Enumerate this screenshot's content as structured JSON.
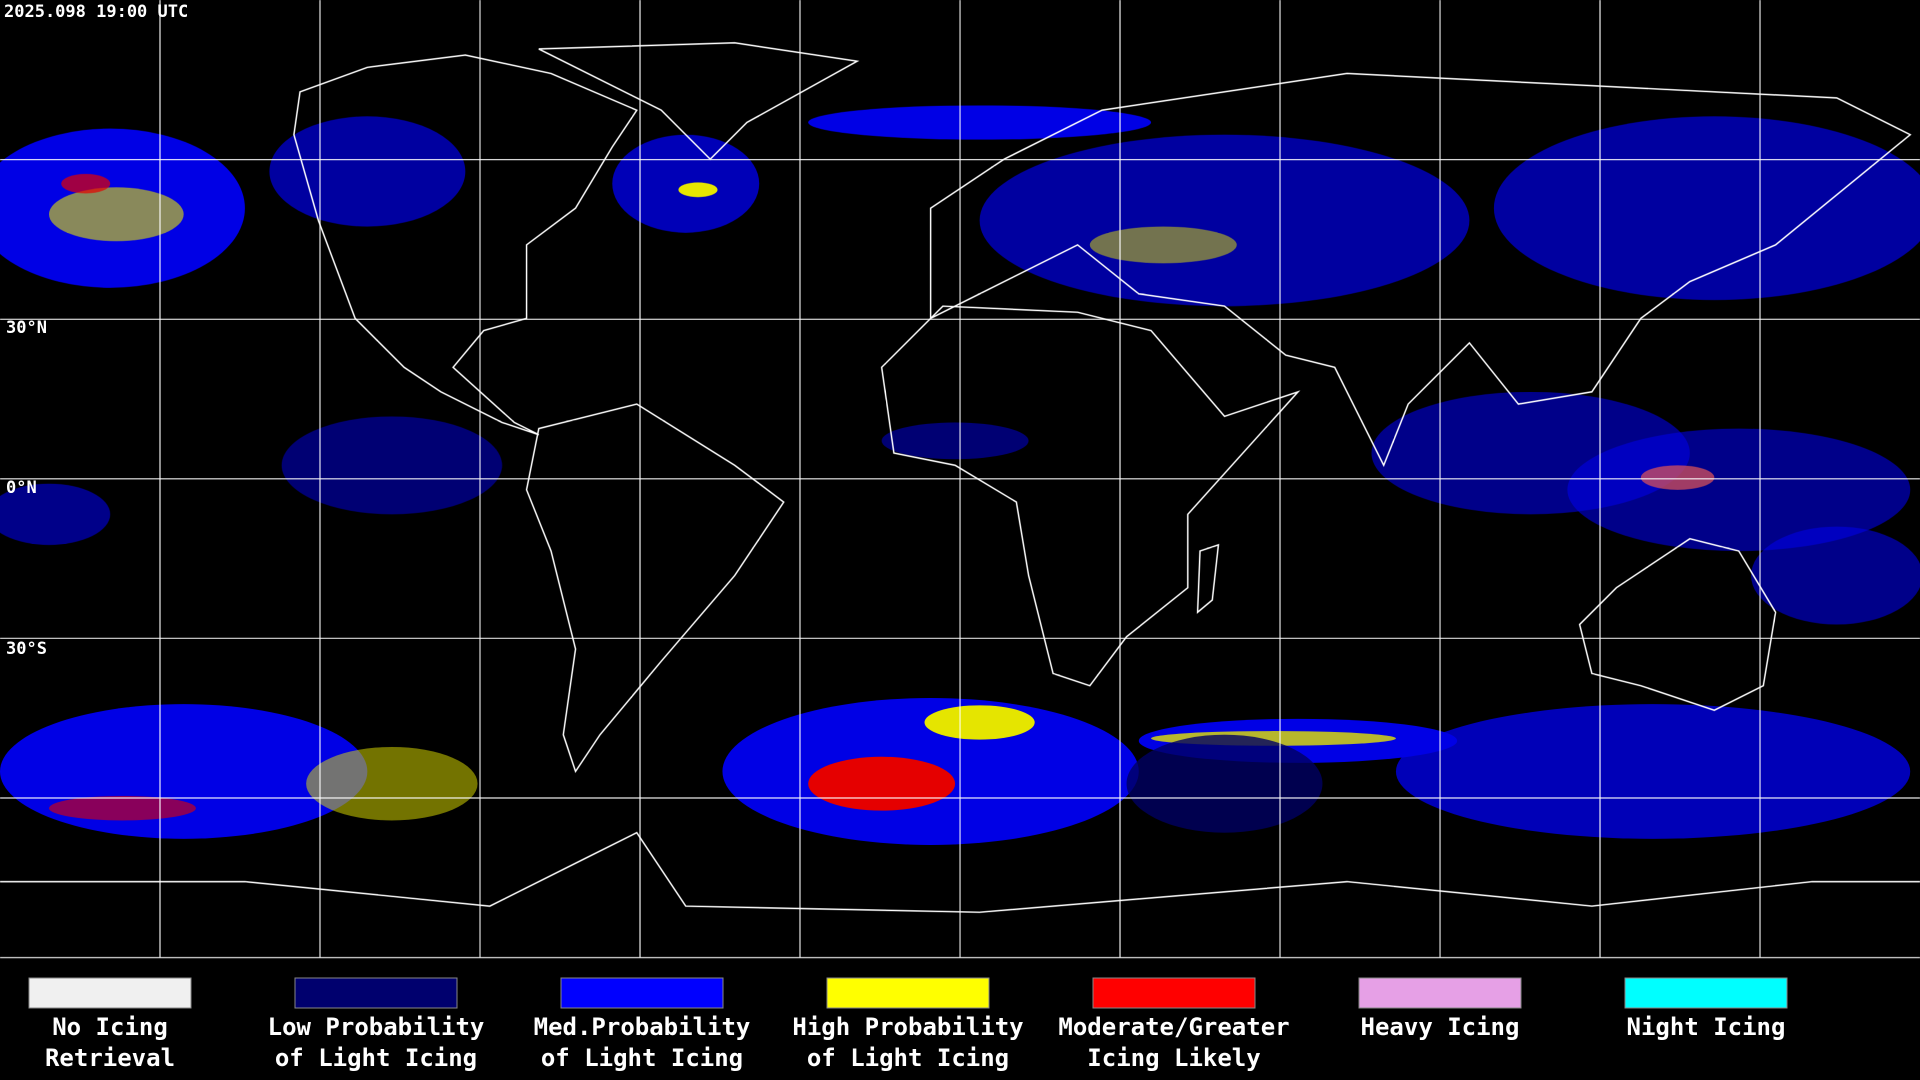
{
  "timestamp": "2025.098 19:00 UTC",
  "lat_labels": [
    "30°N",
    "0°N",
    "30°S"
  ],
  "legend": [
    {
      "label": [
        "No Icing",
        "Retrieval"
      ],
      "color": "#f0f0f0"
    },
    {
      "label": [
        "Low Probability",
        "of Light Icing"
      ],
      "color": "#00006e"
    },
    {
      "label": [
        "Med.Probability",
        "of Light Icing"
      ],
      "color": "#0000ff"
    },
    {
      "label": [
        "High Probability",
        "of Light Icing"
      ],
      "color": "#ffff00"
    },
    {
      "label": [
        "Moderate/Greater",
        "Icing Likely"
      ],
      "color": "#ff0000"
    },
    {
      "label": [
        "Heavy Icing"
      ],
      "color": "#e6a0e6"
    },
    {
      "label": [
        "Night Icing"
      ],
      "color": "#00ffff"
    }
  ]
}
